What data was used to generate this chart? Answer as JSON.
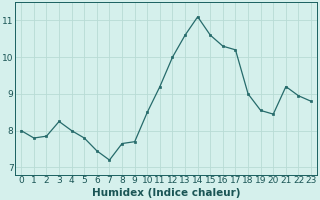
{
  "x": [
    0,
    1,
    2,
    3,
    4,
    5,
    6,
    7,
    8,
    9,
    10,
    11,
    12,
    13,
    14,
    15,
    16,
    17,
    18,
    19,
    20,
    21,
    22,
    23
  ],
  "y": [
    8.0,
    7.8,
    7.85,
    8.25,
    8.0,
    7.8,
    7.45,
    7.2,
    7.65,
    7.7,
    8.5,
    9.2,
    10.0,
    10.6,
    11.1,
    10.6,
    10.3,
    10.2,
    9.0,
    8.55,
    8.45,
    9.2,
    8.95,
    8.8
  ],
  "line_color": "#266b6b",
  "marker_color": "#266b6b",
  "bg_color": "#d5f0ec",
  "grid_color": "#b8dbd5",
  "xlabel": "Humidex (Indice chaleur)",
  "ylim": [
    6.8,
    11.5
  ],
  "xlim": [
    -0.5,
    23.5
  ],
  "yticks": [
    7,
    8,
    9,
    10,
    11
  ],
  "xticks": [
    0,
    1,
    2,
    3,
    4,
    5,
    6,
    7,
    8,
    9,
    10,
    11,
    12,
    13,
    14,
    15,
    16,
    17,
    18,
    19,
    20,
    21,
    22,
    23
  ],
  "xtick_labels": [
    "0",
    "1",
    "2",
    "3",
    "4",
    "5",
    "6",
    "7",
    "8",
    "9",
    "10",
    "11",
    "12",
    "13",
    "14",
    "15",
    "16",
    "17",
    "18",
    "19",
    "20",
    "21",
    "22",
    "23"
  ],
  "tick_fontsize": 6.5,
  "xlabel_fontsize": 7.5,
  "axis_color": "#1a5555",
  "border_color": "#1a6060"
}
